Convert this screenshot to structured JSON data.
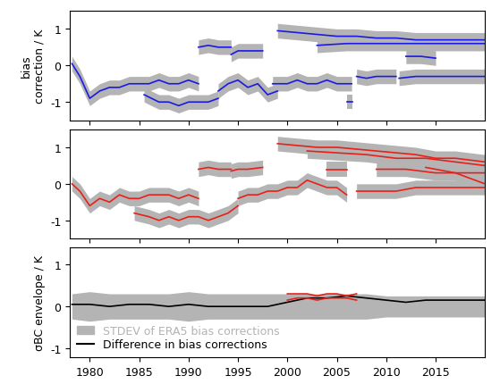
{
  "chart_data": [
    {
      "type": "line",
      "ylabel": "bias\ncorrection / K",
      "color": "#1a1ae6",
      "xlim": [
        1978,
        2020
      ],
      "xticks": [
        1980,
        1985,
        1990,
        1995,
        2000,
        2005,
        2010,
        2015
      ],
      "ylim": [
        -1.5,
        1.5
      ],
      "yticks": [
        -1,
        0,
        1
      ],
      "tick_labels": "y",
      "envelope": 0.2,
      "series": [
        {
          "x": [
            1978.2,
            1979,
            1980,
            1981,
            1982,
            1983,
            1984,
            1985,
            1986,
            1987,
            1988,
            1989,
            1990,
            1991
          ],
          "values": [
            0.05,
            -0.3,
            -0.9,
            -0.7,
            -0.6,
            -0.6,
            -0.5,
            -0.5,
            -0.5,
            -0.4,
            -0.5,
            -0.5,
            -0.4,
            -0.5
          ]
        },
        {
          "x": [
            1985.5,
            1987,
            1988,
            1989,
            1990,
            1991,
            1992,
            1993
          ],
          "values": [
            -0.8,
            -1.0,
            -1.0,
            -1.1,
            -1.0,
            -1.0,
            -1.0,
            -0.9
          ]
        },
        {
          "x": [
            1993,
            1994,
            1995,
            1996,
            1997,
            1998,
            1999
          ],
          "values": [
            -0.7,
            -0.5,
            -0.4,
            -0.6,
            -0.5,
            -0.8,
            -0.7
          ]
        },
        {
          "x": [
            1998.5,
            2000,
            2001,
            2002,
            2003,
            2004,
            2005,
            2006.5
          ],
          "values": [
            -0.5,
            -0.5,
            -0.4,
            -0.5,
            -0.5,
            -0.4,
            -0.5,
            -0.5
          ]
        },
        {
          "x": [
            2007,
            2008,
            2009,
            2010,
            2011
          ],
          "values": [
            -0.3,
            -0.35,
            -0.3,
            -0.3,
            -0.3
          ]
        },
        {
          "x": [
            2006,
            2006.6
          ],
          "values": [
            -1.0,
            -1.0
          ]
        },
        {
          "x": [
            2011.3,
            2013,
            2015,
            2017,
            2020
          ],
          "values": [
            -0.35,
            -0.3,
            -0.3,
            -0.3,
            -0.3
          ]
        },
        {
          "x": [
            1991,
            1992,
            1993,
            1994.3
          ],
          "values": [
            0.5,
            0.55,
            0.5,
            0.5
          ]
        },
        {
          "x": [
            1994.3,
            1995,
            1996,
            1997.5
          ],
          "values": [
            0.3,
            0.4,
            0.4,
            0.4
          ]
        },
        {
          "x": [
            1999,
            2001,
            2003,
            2005,
            2007,
            2009,
            2011,
            2013,
            2015,
            2017,
            2020
          ],
          "values": [
            0.95,
            0.9,
            0.85,
            0.8,
            0.8,
            0.75,
            0.75,
            0.7,
            0.7,
            0.7,
            0.7
          ]
        },
        {
          "x": [
            2003,
            2006,
            2007,
            2010,
            2013,
            2016,
            2020
          ],
          "values": [
            0.55,
            0.6,
            0.6,
            0.6,
            0.6,
            0.6,
            0.6
          ]
        },
        {
          "x": [
            2012,
            2013.5,
            2015
          ],
          "values": [
            0.25,
            0.25,
            0.2
          ]
        }
      ]
    },
    {
      "type": "line",
      "color": "#e8201a",
      "xlim": [
        1978,
        2020
      ],
      "xticks": [
        1980,
        1985,
        1990,
        1995,
        2000,
        2005,
        2010,
        2015
      ],
      "ylim": [
        -1.5,
        1.5
      ],
      "yticks": [
        -1,
        0,
        1
      ],
      "tick_labels": "y",
      "envelope": 0.2,
      "series": [
        {
          "x": [
            1978.2,
            1979,
            1980,
            1981,
            1982,
            1983,
            1984,
            1985,
            1986,
            1987,
            1988,
            1989,
            1990,
            1991
          ],
          "values": [
            0.0,
            -0.2,
            -0.6,
            -0.4,
            -0.5,
            -0.3,
            -0.4,
            -0.4,
            -0.3,
            -0.3,
            -0.3,
            -0.4,
            -0.3,
            -0.4
          ]
        },
        {
          "x": [
            1984.5,
            1986,
            1987,
            1988,
            1989,
            1990,
            1991,
            1992,
            1993,
            1994,
            1995
          ],
          "values": [
            -0.8,
            -0.9,
            -1.0,
            -0.9,
            -1.0,
            -0.9,
            -0.9,
            -1.0,
            -0.9,
            -0.8,
            -0.6
          ]
        },
        {
          "x": [
            1991,
            1992,
            1993,
            1994.3
          ],
          "values": [
            0.4,
            0.45,
            0.4,
            0.4
          ]
        },
        {
          "x": [
            1994.3,
            1995,
            1996,
            1997.5
          ],
          "values": [
            0.35,
            0.4,
            0.4,
            0.45
          ]
        },
        {
          "x": [
            1995,
            1996,
            1997,
            1998,
            1999,
            2000,
            2001,
            2002,
            2003,
            2004,
            2005,
            2006
          ],
          "values": [
            -0.4,
            -0.3,
            -0.3,
            -0.2,
            -0.2,
            -0.1,
            -0.1,
            0.1,
            0.0,
            -0.1,
            -0.1,
            -0.3
          ]
        },
        {
          "x": [
            2007,
            2009,
            2011,
            2013,
            2015,
            2017,
            2020
          ],
          "values": [
            -0.2,
            -0.2,
            -0.2,
            -0.1,
            -0.1,
            -0.1,
            -0.1
          ]
        },
        {
          "x": [
            1999,
            2001,
            2003,
            2005,
            2007,
            2009,
            2011,
            2013,
            2015,
            2017,
            2020
          ],
          "values": [
            1.1,
            1.05,
            1.0,
            1.0,
            0.95,
            0.9,
            0.85,
            0.8,
            0.7,
            0.7,
            0.6
          ]
        },
        {
          "x": [
            2002,
            2005,
            2008,
            2011,
            2014,
            2017,
            2020
          ],
          "values": [
            0.9,
            0.85,
            0.8,
            0.7,
            0.7,
            0.6,
            0.5
          ]
        },
        {
          "x": [
            2004,
            2006
          ],
          "values": [
            0.4,
            0.4
          ]
        },
        {
          "x": [
            2009,
            2012,
            2015,
            2020
          ],
          "values": [
            0.4,
            0.4,
            0.3,
            0.3
          ]
        },
        {
          "x": [
            2014,
            2017,
            2020
          ],
          "values": [
            0.45,
            0.3,
            0.0
          ]
        }
      ]
    },
    {
      "type": "line",
      "ylabel": "σBC envelope / K",
      "xlim": [
        1978,
        2020
      ],
      "xticks": [
        1980,
        1985,
        1990,
        1995,
        2000,
        2005,
        2010,
        2015
      ],
      "ylim": [
        -1.2,
        1.4
      ],
      "yticks": [
        -1,
        0,
        1
      ],
      "legend": "lower left",
      "series": [
        {
          "name": "STDEV of ERA5 bias corrections",
          "type": "band",
          "color": "#b4b4b4",
          "x": [
            1978.2,
            1980,
            1982,
            1984,
            1986,
            1988,
            1990,
            1992,
            1994,
            1996,
            1998,
            2000,
            2002,
            2004,
            2006,
            2008,
            2010,
            2012,
            2014,
            2016,
            2018,
            2020
          ],
          "values": [
            0.3,
            0.35,
            0.3,
            0.3,
            0.3,
            0.3,
            0.35,
            0.3,
            0.3,
            0.3,
            0.3,
            0.3,
            0.3,
            0.3,
            0.3,
            0.3,
            0.25,
            0.25,
            0.25,
            0.25,
            0.25,
            0.25
          ]
        },
        {
          "name": "Difference in bias corrections",
          "color": "#000000",
          "x": [
            1978.2,
            1980,
            1982,
            1984,
            1986,
            1988,
            1990,
            1992,
            1994,
            1996,
            1998,
            2000,
            2002,
            2004,
            2006,
            2008,
            2010,
            2012,
            2014,
            2016,
            2018,
            2020
          ],
          "values": [
            0.05,
            0.05,
            0.0,
            0.05,
            0.05,
            0.0,
            0.05,
            0.0,
            0.0,
            0.0,
            0.0,
            0.1,
            0.2,
            0.2,
            0.25,
            0.2,
            0.15,
            0.1,
            0.15,
            0.15,
            0.15,
            0.15
          ]
        },
        {
          "color": "#e8201a",
          "x": [
            2000,
            2001,
            2002,
            2003,
            2004,
            2005,
            2006,
            2007
          ],
          "values": [
            0.3,
            0.3,
            0.3,
            0.25,
            0.3,
            0.3,
            0.25,
            0.3
          ]
        },
        {
          "color": "#e8201a",
          "x": [
            2000,
            2001,
            2002,
            2003,
            2004,
            2005,
            2006,
            2007
          ],
          "values": [
            0.15,
            0.2,
            0.2,
            0.15,
            0.2,
            0.2,
            0.2,
            0.15
          ]
        }
      ]
    }
  ]
}
